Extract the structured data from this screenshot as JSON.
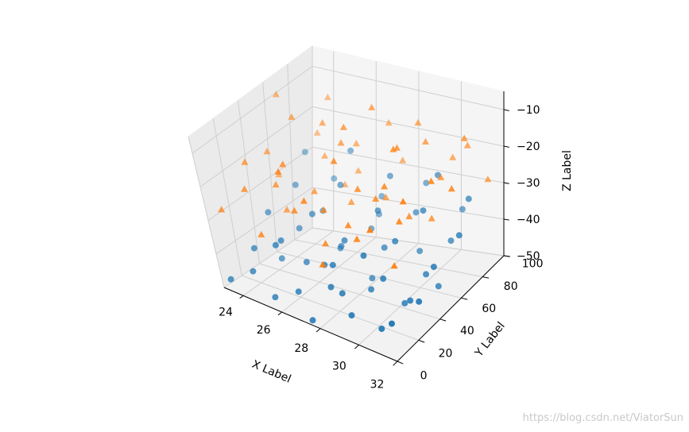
{
  "chart_data": {
    "type": "scatter3d",
    "xlabel": "X Label",
    "ylabel": "Y Label",
    "zlabel": "Z Label",
    "xlim": [
      23,
      32
    ],
    "ylim": [
      0,
      100
    ],
    "zlim": [
      -50,
      -5
    ],
    "x_ticks": [
      "24",
      "26",
      "28",
      "30",
      "32"
    ],
    "y_ticks": [
      "0",
      "20",
      "40",
      "60",
      "80",
      "100"
    ],
    "z_ticks": [
      "−10",
      "−20",
      "−30",
      "−40",
      "−50"
    ],
    "grid": true,
    "series": [
      {
        "marker": "circle",
        "color": "#1f77b4",
        "points": [
          [
            23.2,
            5,
            -48
          ],
          [
            24.1,
            12,
            -45
          ],
          [
            25.3,
            8,
            -49
          ],
          [
            26.2,
            15,
            -47
          ],
          [
            27.4,
            4,
            -50
          ],
          [
            28.3,
            18,
            -44
          ],
          [
            29.2,
            9,
            -46
          ],
          [
            30.5,
            13,
            -48
          ],
          [
            31.4,
            6,
            -43
          ],
          [
            23.8,
            22,
            -41
          ],
          [
            24.9,
            28,
            -38
          ],
          [
            25.7,
            35,
            -44
          ],
          [
            26.8,
            31,
            -42
          ],
          [
            27.6,
            24,
            -39
          ],
          [
            28.7,
            38,
            -47
          ],
          [
            29.8,
            29,
            -40
          ],
          [
            30.9,
            33,
            -45
          ],
          [
            31.7,
            26,
            -42
          ],
          [
            23.5,
            45,
            -36
          ],
          [
            24.6,
            52,
            -40
          ],
          [
            25.5,
            48,
            -34
          ],
          [
            26.4,
            56,
            -43
          ],
          [
            27.3,
            42,
            -37
          ],
          [
            28.4,
            58,
            -41
          ],
          [
            29.5,
            47,
            -35
          ],
          [
            30.6,
            54,
            -44
          ],
          [
            31.5,
            44,
            -38
          ],
          [
            23.9,
            65,
            -32
          ],
          [
            24.8,
            72,
            -39
          ],
          [
            25.9,
            68,
            -30
          ],
          [
            26.9,
            76,
            -42
          ],
          [
            27.9,
            63,
            -33
          ],
          [
            28.9,
            79,
            -36
          ],
          [
            29.9,
            66,
            -31
          ],
          [
            30.8,
            74,
            -40
          ],
          [
            31.8,
            62,
            -34
          ],
          [
            23.4,
            85,
            -28
          ],
          [
            24.4,
            92,
            -35
          ],
          [
            25.4,
            88,
            -26
          ],
          [
            26.5,
            95,
            -38
          ],
          [
            27.5,
            83,
            -29
          ],
          [
            28.5,
            97,
            -33
          ],
          [
            29.6,
            86,
            -27
          ],
          [
            30.4,
            93,
            -37
          ],
          [
            31.3,
            81,
            -30
          ],
          [
            24.3,
            38,
            -46
          ],
          [
            26.1,
            61,
            -45
          ],
          [
            27.8,
            17,
            -43
          ],
          [
            29.4,
            72,
            -44
          ],
          [
            30.2,
            41,
            -49
          ],
          [
            25.1,
            19,
            -37
          ],
          [
            28.1,
            51,
            -48
          ],
          [
            31.1,
            56,
            -47
          ],
          [
            26.7,
            88,
            -41
          ],
          [
            29.1,
            25,
            -34
          ]
        ]
      },
      {
        "marker": "triangle",
        "color": "#ff7f0e",
        "points": [
          [
            23.3,
            8,
            -28
          ],
          [
            24.2,
            15,
            -22
          ],
          [
            25.2,
            6,
            -31
          ],
          [
            26.3,
            18,
            -25
          ],
          [
            27.2,
            11,
            -19
          ],
          [
            28.2,
            4,
            -33
          ],
          [
            29.3,
            16,
            -27
          ],
          [
            30.3,
            9,
            -21
          ],
          [
            31.2,
            13,
            -30
          ],
          [
            23.7,
            27,
            -18
          ],
          [
            24.7,
            33,
            -24
          ],
          [
            25.6,
            25,
            -15
          ],
          [
            26.6,
            38,
            -29
          ],
          [
            27.7,
            30,
            -12
          ],
          [
            28.6,
            22,
            -26
          ],
          [
            29.7,
            35,
            -17
          ],
          [
            30.7,
            28,
            -23
          ],
          [
            31.6,
            40,
            -14
          ],
          [
            23.6,
            48,
            -20
          ],
          [
            24.5,
            55,
            -11
          ],
          [
            25.8,
            46,
            -27
          ],
          [
            26.5,
            59,
            -16
          ],
          [
            27.1,
            51,
            -9
          ],
          [
            28.8,
            44,
            -24
          ],
          [
            29.2,
            57,
            -13
          ],
          [
            30.1,
            49,
            -28
          ],
          [
            31.9,
            53,
            -19
          ],
          [
            23.1,
            68,
            -10
          ],
          [
            24.9,
            74,
            -25
          ],
          [
            25.3,
            66,
            -14
          ],
          [
            26.2,
            78,
            -21
          ],
          [
            27.4,
            70,
            -8
          ],
          [
            28.3,
            63,
            -29
          ],
          [
            29.5,
            77,
            -16
          ],
          [
            30.6,
            69,
            -22
          ],
          [
            31.4,
            75,
            -12
          ],
          [
            23.9,
            87,
            -23
          ],
          [
            24.1,
            93,
            -15
          ],
          [
            25.9,
            85,
            -30
          ],
          [
            26.8,
            96,
            -19
          ],
          [
            27.8,
            89,
            -26
          ],
          [
            28.9,
            82,
            -13
          ],
          [
            29.9,
            94,
            -24
          ],
          [
            30.9,
            88,
            -18
          ],
          [
            31.7,
            91,
            -27
          ],
          [
            24.6,
            42,
            -33
          ],
          [
            26.9,
            58,
            -31
          ],
          [
            28.4,
            36,
            -20
          ],
          [
            30.4,
            64,
            -32
          ],
          [
            25.5,
            80,
            -33
          ],
          [
            27.6,
            19,
            -32
          ],
          [
            29.6,
            46,
            -10
          ],
          [
            31.1,
            24,
            -16
          ],
          [
            23.4,
            60,
            -29
          ],
          [
            26.1,
            12,
            -13
          ]
        ]
      }
    ]
  },
  "watermark": "https://blog.csdn.net/ViatorSun"
}
